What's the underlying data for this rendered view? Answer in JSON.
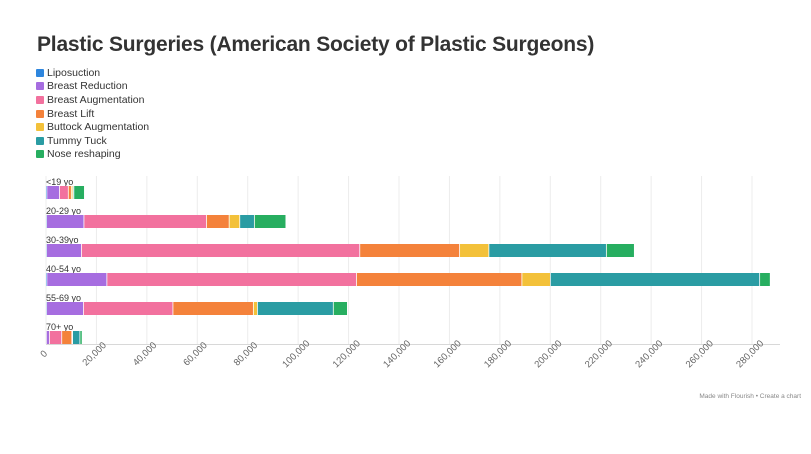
{
  "chart_data": {
    "type": "bar",
    "orientation": "horizontal",
    "stacked": true,
    "title": "Plastic Surgeries (American Society of Plastic Surgeons)",
    "categories": [
      "<19 yo",
      "20-29 yo",
      "30-39yo",
      "40-54 yo",
      "55-69 yo",
      "70+ yo"
    ],
    "series": [
      {
        "name": "Liposuction",
        "color": "#2e86de",
        "values": [
          500,
          400,
          400,
          500,
          400,
          300
        ]
      },
      {
        "name": "Breast Reduction",
        "color": "#a66de0",
        "values": [
          5000,
          14800,
          13800,
          23800,
          14600,
          1200
        ]
      },
      {
        "name": "Breast Augmentation",
        "color": "#f2719e",
        "values": [
          3500,
          48600,
          110400,
          99000,
          35500,
          4900
        ]
      },
      {
        "name": "Breast Lift",
        "color": "#f4823b",
        "values": [
          1200,
          9000,
          39600,
          65600,
          31900,
          4000
        ]
      },
      {
        "name": "Buttock Augmentation",
        "color": "#f3c13a",
        "values": [
          600,
          4200,
          11600,
          11300,
          1600,
          300
        ]
      },
      {
        "name": "Tummy Tuck",
        "color": "#2a9ca3",
        "values": [
          400,
          5800,
          46600,
          83000,
          30100,
          2900
        ]
      },
      {
        "name": "Nose reshaping",
        "color": "#27ae60",
        "values": [
          4200,
          12500,
          11100,
          4200,
          5600,
          900
        ]
      }
    ],
    "xlim": [
      0,
      280000
    ],
    "xticks": [
      "0",
      "20,000",
      "40,000",
      "60,000",
      "80,000",
      "100,000",
      "120,000",
      "140,000",
      "160,000",
      "180,000",
      "200,000",
      "220,000",
      "240,000",
      "260,000",
      "280,000"
    ],
    "xtick_values": [
      0,
      20000,
      40000,
      60000,
      80000,
      100000,
      120000,
      140000,
      160000,
      180000,
      200000,
      220000,
      240000,
      260000,
      280000
    ],
    "grid": true,
    "legend": "top-left"
  },
  "footer": "Made with Flourish • Create a chart"
}
